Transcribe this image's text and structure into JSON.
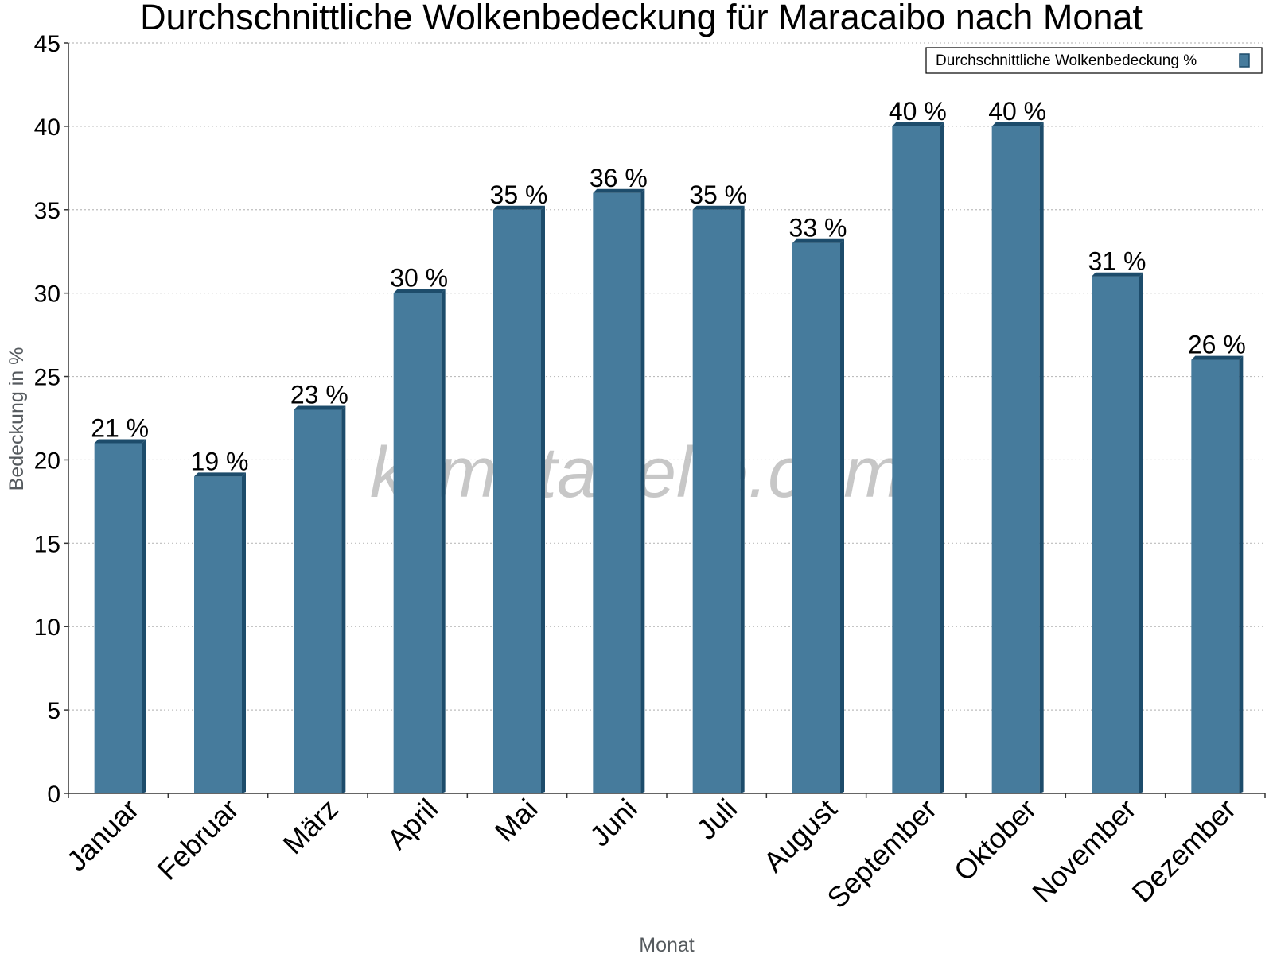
{
  "watermark": "klimatabelle.com",
  "colors": {
    "bar_face": "#467b9c",
    "bar_side": "#1d4c6b",
    "grid": "#bdbdbd",
    "axis": "#333333"
  },
  "chart_data": {
    "type": "bar",
    "title": "Durchschnittliche Wolkenbedeckung für Maracaibo nach Monat",
    "xlabel": "Monat",
    "ylabel": "Bedeckung in %",
    "ylim": [
      0,
      45
    ],
    "yticks": [
      0,
      5,
      10,
      15,
      20,
      25,
      30,
      35,
      40,
      45
    ],
    "grid": true,
    "legend_position": "top-right",
    "categories": [
      "Januar",
      "Februar",
      "März",
      "April",
      "Mai",
      "Juni",
      "Juli",
      "August",
      "September",
      "Oktober",
      "November",
      "Dezember"
    ],
    "series": [
      {
        "name": "Durchschnittliche Wolkenbedeckung %",
        "values": [
          21,
          19,
          23,
          30,
          35,
          36,
          35,
          33,
          40,
          40,
          31,
          26
        ],
        "labels": [
          "21 %",
          "19 %",
          "23 %",
          "30 %",
          "35 %",
          "36 %",
          "35 %",
          "33 %",
          "40 %",
          "40 %",
          "31 %",
          "26 %"
        ]
      }
    ]
  }
}
